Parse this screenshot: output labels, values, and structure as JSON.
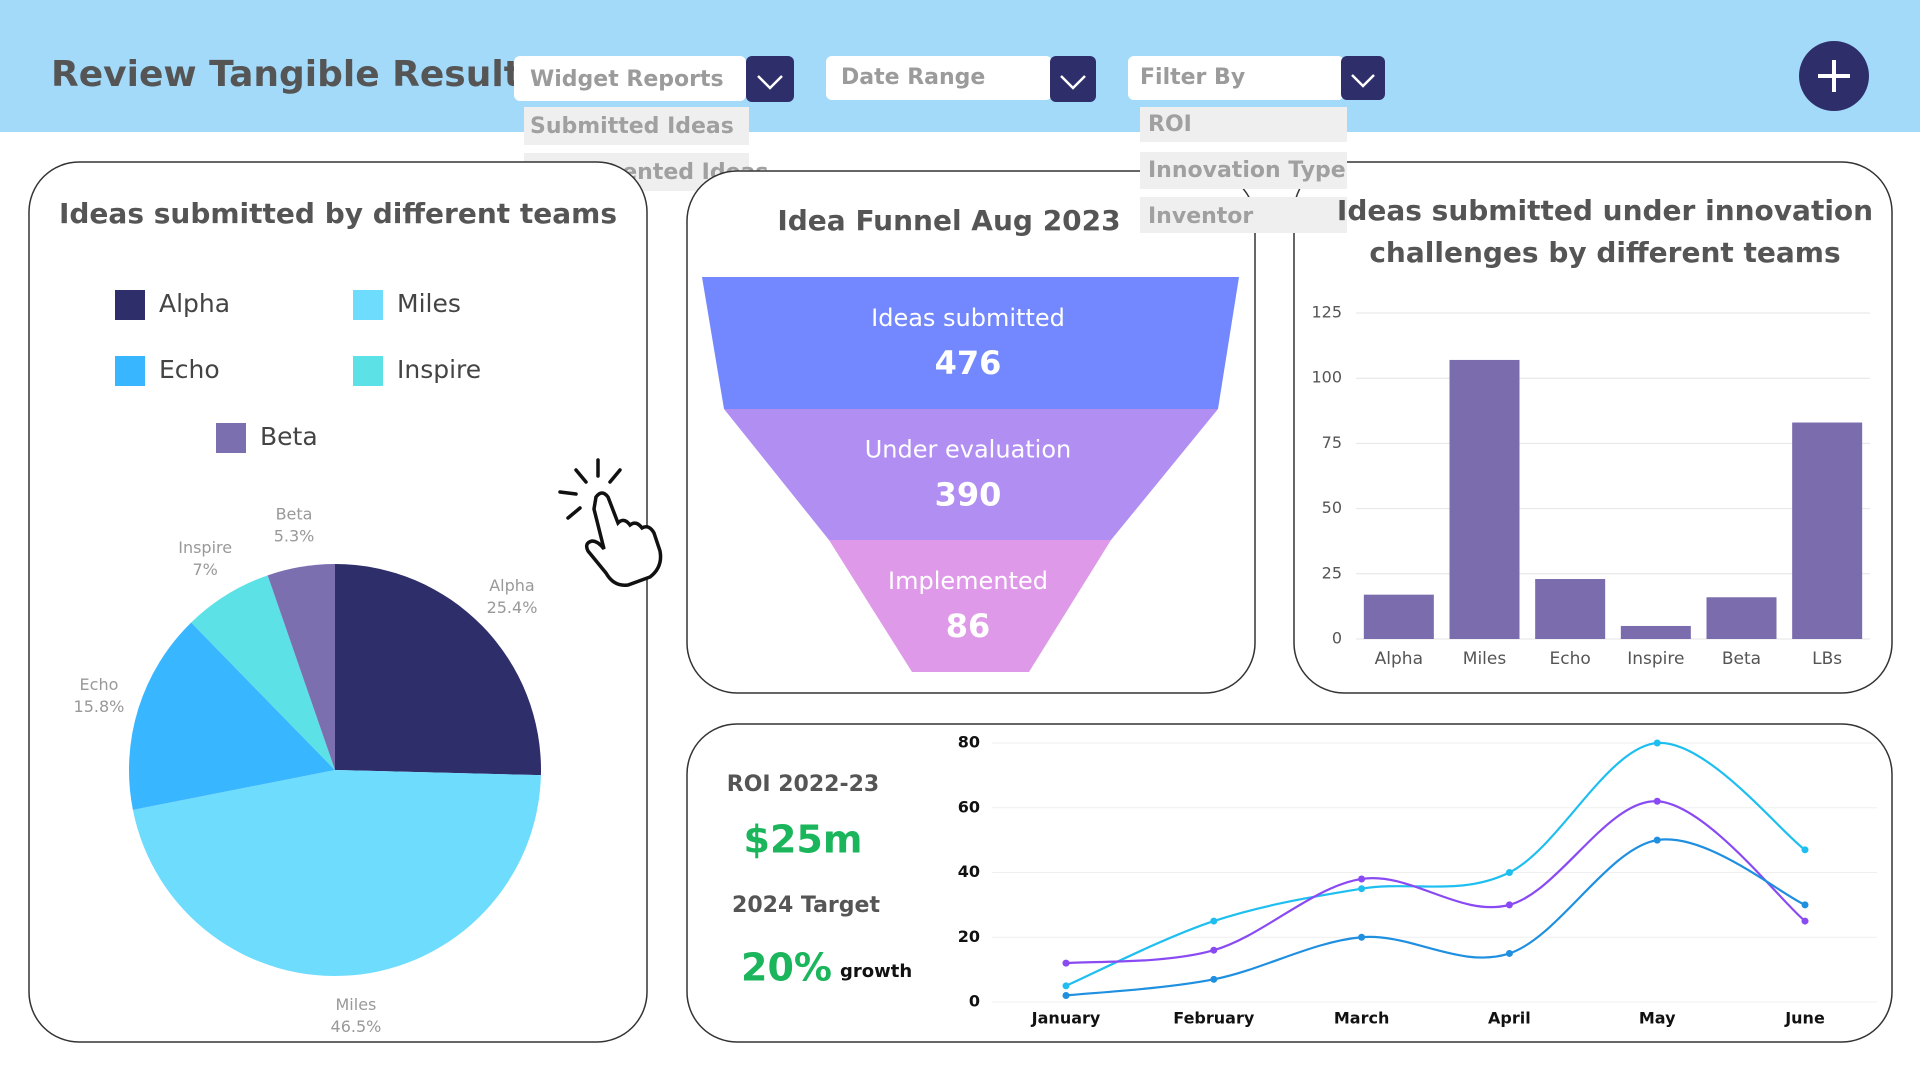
{
  "header": {
    "title": "Review Tangible Results"
  },
  "menus": [
    {
      "label": "Widget Reports",
      "options": [
        "Submitted Ideas",
        "Implemented Ideas"
      ]
    },
    {
      "label": "Date Range"
    },
    {
      "label": "Filter By",
      "options": [
        "ROI",
        "Innovation Type",
        "Inventor"
      ]
    }
  ],
  "roi": {
    "label": "ROI 2022-23",
    "value": "$25m",
    "target_label": "2024 Target",
    "target_value": "20%",
    "target_unit": "growth"
  },
  "chart_data": [
    {
      "type": "pie",
      "title": "Ideas submitted by different teams",
      "categories": [
        "Alpha",
        "Miles",
        "Echo",
        "Inspire",
        "Beta"
      ],
      "values": [
        25.4,
        46.5,
        15.8,
        7,
        5.3
      ],
      "value_labels": [
        "25.4%",
        "46.5%",
        "15.8%",
        "7%",
        "5.3%"
      ],
      "colors": [
        "#2e2e6b",
        "#6ddcfd",
        "#38b6ff",
        "#5ce1e6",
        "#7b6fb0"
      ]
    },
    {
      "type": "funnel",
      "title": "Idea Funnel Aug 2023",
      "categories": [
        "Ideas submitted",
        "Under evaluation",
        "Implemented"
      ],
      "values": [
        476,
        390,
        86
      ],
      "colors": [
        "#7388fe",
        "#b18ef2",
        "#de9ae8"
      ]
    },
    {
      "type": "bar",
      "title": "Ideas submitted under innovation challenges by different teams",
      "categories": [
        "Alpha",
        "Miles",
        "Echo",
        "Inspire",
        "Beta",
        "LBs"
      ],
      "values": [
        17,
        107,
        23,
        5,
        16,
        83
      ],
      "color": "#7a6cad",
      "ylim": [
        0,
        125
      ],
      "yticks": [
        0,
        25,
        50,
        75,
        100,
        125
      ],
      "grid": true
    },
    {
      "type": "line",
      "categories": [
        "January",
        "February",
        "March",
        "April",
        "May",
        "June"
      ],
      "series": [
        {
          "color": "#1ebff0",
          "values": [
            5,
            25,
            35,
            40,
            80,
            47
          ]
        },
        {
          "color": "#8a4af3",
          "values": [
            12,
            16,
            38,
            30,
            62,
            25
          ]
        },
        {
          "color": "#1f8fe0",
          "values": [
            2,
            7,
            20,
            15,
            50,
            30
          ]
        }
      ],
      "ylim": [
        0,
        80
      ],
      "yticks": [
        0,
        20,
        40,
        60,
        80
      ],
      "grid": true
    }
  ]
}
